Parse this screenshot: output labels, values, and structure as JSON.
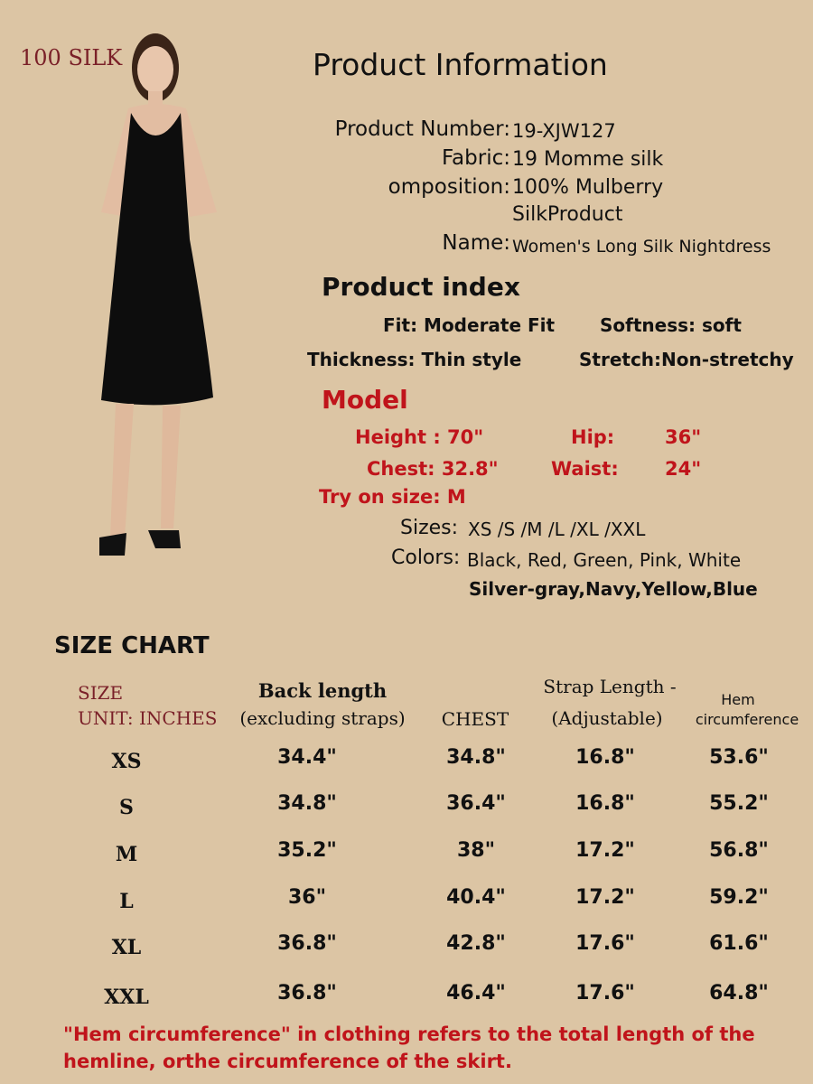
{
  "badge": "100 SILK",
  "title": "Product Information",
  "info": [
    {
      "label": "Product Number:",
      "value": "19-XJW127"
    },
    {
      "label": "Fabric:",
      "value": "19 Momme silk"
    },
    {
      "label": "omposition:",
      "value": "100% Mulberry"
    },
    {
      "label": "",
      "value": "SilkProduct"
    },
    {
      "label": "Name:",
      "value": "Women's Long Silk Nightdress"
    }
  ],
  "index": {
    "title": "Product index",
    "fit": "Fit: Moderate Fit",
    "softness": "Softness: soft",
    "thickness": "Thickness: Thin style",
    "stretch": "Stretch:Non-stretchy"
  },
  "model": {
    "title": "Model",
    "height": "Height :   70\"",
    "hip": "Hip:",
    "hip_val": "36\"",
    "chest": "Chest: 32.8\"",
    "waist": "Waist:",
    "waist_val": "24\"",
    "try_on": "Try on size:  M"
  },
  "sizes": {
    "label": "Sizes:",
    "value": "XS /S /M /L /XL /XXL"
  },
  "colors": {
    "label": "Colors:",
    "value": "Black, Red, Green, Pink, White",
    "value2": "Silver-gray,Navy,Yellow,Blue"
  },
  "size_chart": {
    "title": "SIZE  CHART",
    "size_header": "SIZE",
    "unit_header": "UNIT: INCHES",
    "headers": [
      [
        "Back length",
        "(excluding straps)"
      ],
      [
        "",
        "CHEST"
      ],
      [
        "Strap Length -",
        "(Adjustable)"
      ],
      [
        "Hem",
        "circumference"
      ]
    ],
    "rows": [
      {
        "size": "XS",
        "back": "34.4\"",
        "chest": "34.8\"",
        "strap": "16.8\"",
        "hem": "53.6\""
      },
      {
        "size": "S",
        "back": "34.8\"",
        "chest": "36.4\"",
        "strap": "16.8\"",
        "hem": "55.2\""
      },
      {
        "size": "M",
        "back": "35.2\"",
        "chest": "38\"",
        "strap": "17.2\"",
        "hem": "56.8\""
      },
      {
        "size": "L",
        "back": "36\"",
        "chest": "40.4\"",
        "strap": "17.2\"",
        "hem": "59.2\""
      },
      {
        "size": "XL",
        "back": "36.8\"",
        "chest": "42.8\"",
        "strap": "17.6\"",
        "hem": "61.6\""
      },
      {
        "size": "XXL",
        "back": "36.8\"",
        "chest": "46.4\"",
        "strap": "17.6\"",
        "hem": "64.8\""
      }
    ]
  },
  "note": "\"Hem circumference\" in clothing refers to the total length of the hemline, orthe circumference of the skirt.",
  "colors_theme": {
    "background": "#dcc5a4",
    "accent_red": "#c0141b",
    "maroon": "#7a2028"
  }
}
